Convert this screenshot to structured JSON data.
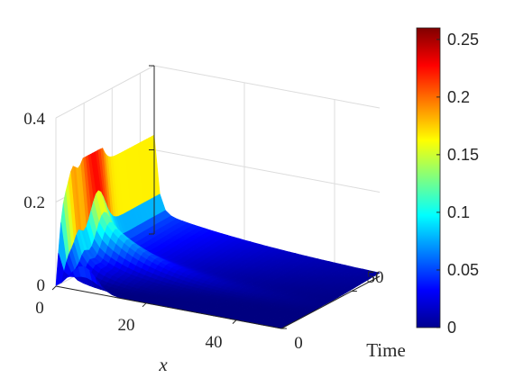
{
  "chart_data": {
    "type": "surface3d",
    "xlabel": "x",
    "ylabel": "Time",
    "x_ticks": [
      "0",
      "20",
      "40"
    ],
    "time_ticks": [
      "0",
      "50"
    ],
    "z_ticks": [
      "0",
      "0.2",
      "0.4"
    ],
    "x_range": [
      0,
      50
    ],
    "time_range": [
      0,
      70
    ],
    "z_range": [
      0,
      0.4
    ],
    "grid": true,
    "colormap": "jet",
    "colorbar": {
      "ticks": [
        "0",
        "0.05",
        "0.1",
        "0.15",
        "0.2",
        "0.25"
      ],
      "range": [
        0,
        0.26
      ],
      "placement": "right"
    },
    "surface_profile_at_time_0": {
      "x": [
        0,
        2,
        4,
        6,
        8,
        10,
        15,
        20,
        25,
        30,
        35,
        40,
        45,
        50
      ],
      "u": [
        0.0,
        0.05,
        0.09,
        0.13,
        0.13,
        0.12,
        0.09,
        0.07,
        0.05,
        0.035,
        0.02,
        0.012,
        0.006,
        0.0
      ]
    },
    "surface_profile_at_x_0": {
      "time": [
        0,
        2,
        4,
        8,
        10,
        12,
        18,
        25,
        32,
        40,
        50,
        60,
        70
      ],
      "u": [
        0.0,
        0.03,
        0.06,
        0.09,
        0.16,
        0.24,
        0.22,
        0.25,
        0.2,
        0.13,
        0.08,
        0.05,
        0.03
      ]
    },
    "peak_value": 0.26
  }
}
